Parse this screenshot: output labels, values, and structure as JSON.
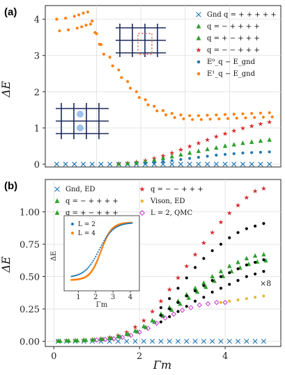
{
  "panel_a": {
    "tag": "(a)",
    "ylabel": "ΔE",
    "yticks": [
      "0",
      "1",
      "2",
      "3",
      "4"
    ],
    "legend": [
      {
        "text": "Gnd q = + + + + +",
        "marker": "x",
        "color": "#1f77b4"
      },
      {
        "text": "q = − + + + +",
        "marker": "tri",
        "color": "#2ca02c"
      },
      {
        "text": "q = + − + + +",
        "marker": "tri",
        "color": "#2ca02c"
      },
      {
        "text": "q = − − + + +",
        "marker": "star",
        "color": "#d62728"
      },
      {
        "text": "E⁰_q − E_gnd",
        "marker": "dot",
        "color": "#1f77b4"
      },
      {
        "text": "E¹_q − E_gnd",
        "marker": "dot",
        "color": "#ff7f0e"
      }
    ]
  },
  "panel_b": {
    "tag": "(b)",
    "ylabel": "ΔE",
    "xlabel": "Γm",
    "xticks": [
      "0",
      "2",
      "4"
    ],
    "yticks": [
      "0.00",
      "0.25",
      "0.50",
      "0.75",
      "1.00"
    ],
    "legend": [
      {
        "text": "Gnd, ED",
        "marker": "x",
        "color": "#1f77b4"
      },
      {
        "text": "q = − + + + +",
        "marker": "tri",
        "color": "#2ca02c"
      },
      {
        "text": "q = + − + + +",
        "marker": "tri",
        "color": "#2ca02c"
      },
      {
        "text": "q = − − + + +",
        "marker": "star",
        "color": "#d62728"
      },
      {
        "text": "Vison, ED",
        "marker": "dot",
        "color": "#e8b92b"
      },
      {
        "text": "L = 2, QMC",
        "marker": "diamond",
        "color": "#cc33cc"
      }
    ],
    "annotation": "×8",
    "inset": {
      "xlabel": "Γm",
      "ylabel": "ΔE",
      "xticks": [
        "1",
        "2",
        "3",
        "4"
      ],
      "legend": [
        {
          "text": "L = 2",
          "color": "#1f77b4"
        },
        {
          "text": "L = 4",
          "color": "#ff7f0e"
        }
      ]
    }
  },
  "colors": {
    "blue": "#1f77b4",
    "orange": "#ff7f0e",
    "green": "#2ca02c",
    "red": "#d62728",
    "black": "#000000",
    "gold": "#e8b92b",
    "magenta": "#cc33cc"
  },
  "chart_data": [
    {
      "type": "scatter",
      "ylim": [
        0,
        4.3
      ],
      "xlim": [
        0,
        5
      ],
      "series": [
        {
          "name": "Gnd q = + + + + +",
          "x": [
            0.1,
            0.3,
            0.5,
            0.7,
            0.9,
            1.1,
            1.3,
            1.5,
            1.7,
            1.9,
            2.1,
            2.3,
            2.5,
            2.7,
            2.9,
            3.1,
            3.3,
            3.5,
            3.7,
            3.9,
            4.1,
            4.3,
            4.5,
            4.7,
            4.9
          ],
          "y": [
            0,
            0,
            0,
            0,
            0,
            0,
            0,
            0,
            0,
            0,
            0,
            0,
            0,
            0,
            0,
            0,
            0,
            0,
            0,
            0,
            0,
            0,
            0,
            0,
            0
          ]
        },
        {
          "name": "q = − − + + +",
          "x": [
            1.5,
            1.7,
            1.9,
            2.1,
            2.3,
            2.5,
            2.7,
            2.9,
            3.1,
            3.3,
            3.5,
            3.7,
            3.9,
            4.1,
            4.3,
            4.5,
            4.7,
            4.9
          ],
          "y": [
            0.01,
            0.03,
            0.06,
            0.1,
            0.16,
            0.23,
            0.31,
            0.4,
            0.49,
            0.58,
            0.67,
            0.76,
            0.84,
            0.92,
            0.99,
            1.05,
            1.11,
            1.16
          ]
        },
        {
          "name": "q = − + + + +",
          "x": [
            1.5,
            1.7,
            1.9,
            2.1,
            2.3,
            2.5,
            2.7,
            2.9,
            3.1,
            3.3,
            3.5,
            3.7,
            3.9,
            4.1,
            4.3,
            4.5,
            4.7,
            4.9
          ],
          "y": [
            0.01,
            0.02,
            0.04,
            0.07,
            0.11,
            0.16,
            0.21,
            0.26,
            0.31,
            0.36,
            0.41,
            0.45,
            0.5,
            0.54,
            0.58,
            0.61,
            0.64,
            0.67
          ]
        },
        {
          "name": "E¹_q − E_gnd",
          "x": [
            0.1,
            0.3,
            0.5,
            0.6,
            0.7,
            0.8,
            0.9,
            1.0,
            1.1,
            1.3,
            1.5,
            1.7,
            1.9,
            2.1,
            2.3,
            2.5,
            2.7,
            2.9,
            3.1,
            3.3,
            3.5,
            3.7,
            3.9,
            4.1,
            4.3,
            4.5,
            4.7,
            4.9
          ],
          "y": [
            4.0,
            4.03,
            4.08,
            4.12,
            4.17,
            4.2,
            3.95,
            3.6,
            3.3,
            2.95,
            2.6,
            2.28,
            2.0,
            1.78,
            1.6,
            1.48,
            1.4,
            1.36,
            1.34,
            1.34,
            1.35,
            1.36,
            1.37,
            1.38,
            1.39,
            1.4,
            1.41,
            1.42
          ]
        },
        {
          "name": "E⁰_q − E_gnd",
          "x": [
            2.1,
            2.3,
            2.5,
            2.7,
            2.9,
            3.1,
            3.3,
            3.5,
            3.7,
            3.9,
            4.1,
            4.3,
            4.5,
            4.7,
            4.9
          ],
          "y": [
            0.02,
            0.04,
            0.07,
            0.1,
            0.13,
            0.16,
            0.19,
            0.22,
            0.25,
            0.27,
            0.29,
            0.31,
            0.32,
            0.33,
            0.34
          ]
        }
      ]
    },
    {
      "type": "scatter",
      "xlabel": "Γm",
      "ylabel": "ΔE",
      "xlim": [
        -0.2,
        5.3
      ],
      "ylim": [
        -0.04,
        1.25
      ],
      "series": [
        {
          "name": "Gnd, ED",
          "x": [
            0.1,
            0.3,
            0.5,
            0.7,
            0.9,
            1.1,
            1.3,
            1.5,
            1.7,
            1.9,
            2.1,
            2.3,
            2.5,
            2.7,
            2.9,
            3.1,
            3.3,
            3.5,
            3.7,
            3.9,
            4.1,
            4.3,
            4.5,
            4.7,
            4.9
          ],
          "y": [
            0,
            0,
            0,
            0,
            0,
            0,
            0,
            0,
            0,
            0,
            0,
            0,
            0,
            0,
            0,
            0,
            0,
            0,
            0,
            0,
            0,
            0,
            0,
            0,
            0
          ]
        },
        {
          "name": "q = − − + + +",
          "x": [
            0.1,
            0.3,
            0.5,
            0.7,
            0.9,
            1.1,
            1.3,
            1.5,
            1.7,
            1.9,
            2.1,
            2.3,
            2.5,
            2.7,
            2.9,
            3.1,
            3.3,
            3.5,
            3.7,
            3.9,
            4.1,
            4.3,
            4.5,
            4.7,
            4.9
          ],
          "y": [
            0.003,
            0.005,
            0.007,
            0.01,
            0.014,
            0.02,
            0.03,
            0.045,
            0.07,
            0.11,
            0.16,
            0.23,
            0.31,
            0.4,
            0.49,
            0.58,
            0.67,
            0.76,
            0.84,
            0.92,
            0.99,
            1.05,
            1.11,
            1.16,
            1.18
          ]
        },
        {
          "name": "q = − + + + +",
          "x": [
            0.1,
            0.3,
            0.5,
            0.7,
            0.9,
            1.1,
            1.3,
            1.5,
            1.7,
            1.9,
            2.1,
            2.3,
            2.5,
            2.7,
            2.9,
            3.1,
            3.3,
            3.5,
            3.7,
            3.9,
            4.1,
            4.3,
            4.5,
            4.7,
            4.9
          ],
          "y": [
            0.002,
            0.004,
            0.006,
            0.009,
            0.012,
            0.017,
            0.025,
            0.037,
            0.055,
            0.08,
            0.115,
            0.16,
            0.21,
            0.26,
            0.31,
            0.36,
            0.41,
            0.45,
            0.5,
            0.54,
            0.58,
            0.61,
            0.64,
            0.66,
            0.67
          ]
        },
        {
          "name": "",
          "x": [
            2.5,
            2.7,
            2.9,
            3.1,
            3.3,
            3.5,
            3.7,
            3.9,
            4.1,
            4.3,
            4.5,
            4.7,
            4.9
          ],
          "y": [
            0.26,
            0.33,
            0.41,
            0.49,
            0.57,
            0.64,
            0.7,
            0.75,
            0.8,
            0.84,
            0.87,
            0.89,
            0.91
          ]
        },
        {
          "name": "",
          "x": [
            2.5,
            2.7,
            2.9,
            3.1,
            3.3,
            3.5,
            3.7,
            3.9,
            4.1,
            4.3,
            4.5,
            4.7,
            4.9
          ],
          "y": [
            0.2,
            0.25,
            0.3,
            0.35,
            0.39,
            0.43,
            0.47,
            0.5,
            0.53,
            0.56,
            0.59,
            0.61,
            0.63
          ]
        },
        {
          "name": "",
          "x": [
            2.5,
            2.7,
            2.9,
            3.1,
            3.3,
            3.5,
            3.7,
            3.9,
            4.1,
            4.3,
            4.5,
            4.7,
            4.9
          ],
          "y": [
            0.15,
            0.19,
            0.23,
            0.27,
            0.31,
            0.34,
            0.38,
            0.41,
            0.44,
            0.47,
            0.5,
            0.52,
            0.54
          ]
        },
        {
          "name": "Vison, ED",
          "x": [
            3.9,
            4.1,
            4.3,
            4.5,
            4.7,
            4.9
          ],
          "y": [
            0.3,
            0.31,
            0.32,
            0.33,
            0.34,
            0.35
          ]
        },
        {
          "name": "L = 2, QMC",
          "x": [
            1.0,
            1.2,
            1.4,
            1.6,
            1.8,
            2.0,
            2.2,
            2.4,
            2.6,
            2.8,
            3.0,
            3.2,
            3.4,
            3.6,
            3.8,
            4.0
          ],
          "y": [
            0.01,
            0.015,
            0.02,
            0.03,
            0.045,
            0.07,
            0.1,
            0.14,
            0.18,
            0.21,
            0.24,
            0.26,
            0.28,
            0.29,
            0.3,
            0.3
          ]
        }
      ]
    }
  ]
}
